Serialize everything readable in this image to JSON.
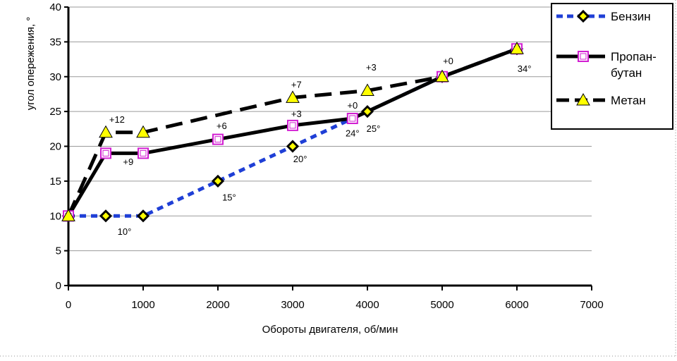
{
  "chart_data": {
    "type": "line",
    "title": "",
    "xlabel": "Обороты двигателя, об/мин",
    "ylabel": "угол опережения, °",
    "xlim": [
      0,
      7000
    ],
    "ylim": [
      0,
      40
    ],
    "x_ticks": [
      "0",
      "1000",
      "2000",
      "3000",
      "4000",
      "5000",
      "6000",
      "7000"
    ],
    "y_ticks": [
      "0",
      "5",
      "10",
      "15",
      "20",
      "25",
      "30",
      "35",
      "40"
    ],
    "grid": "horizontal",
    "legend_position": "top-right",
    "series": [
      {
        "name": "Бензин",
        "color": "#1f3fd6",
        "line_style": "dotted",
        "marker": "diamond",
        "x": [
          0,
          500,
          1000,
          2000,
          3000,
          4000,
          5000,
          6000
        ],
        "y": [
          10,
          10,
          10,
          15,
          20,
          25,
          30,
          34
        ]
      },
      {
        "name": "Пропан-бутан",
        "name_lines": [
          "Пропан-",
          "бутан"
        ],
        "color": "#000000",
        "line_style": "solid",
        "marker": "square",
        "x": [
          0,
          500,
          1000,
          2000,
          3000,
          3800,
          5000,
          6000
        ],
        "y": [
          10,
          19,
          19,
          21,
          23,
          24,
          30,
          34
        ]
      },
      {
        "name": "Метан",
        "color": "#000000",
        "line_style": "dashed",
        "marker": "triangle",
        "x": [
          0,
          500,
          1000,
          3000,
          4000,
          5000,
          6000
        ],
        "y": [
          10,
          22,
          22,
          27,
          28,
          30,
          34
        ]
      }
    ],
    "annotations": [
      {
        "text": "+12",
        "x": 650,
        "y": 23.4
      },
      {
        "text": "+9",
        "x": 800,
        "y": 17.3
      },
      {
        "text": "+6",
        "x": 2050,
        "y": 22.5
      },
      {
        "text": "+7",
        "x": 3050,
        "y": 28.4
      },
      {
        "text": "+3",
        "x": 3050,
        "y": 24.2
      },
      {
        "text": "+3",
        "x": 4050,
        "y": 30.9
      },
      {
        "text": "+0",
        "x": 5080,
        "y": 31.8
      },
      {
        "text": "+0",
        "x": 3800,
        "y": 25.4
      },
      {
        "text": "10°",
        "x": 750,
        "y": 7.3
      },
      {
        "text": "15°",
        "x": 2150,
        "y": 12.2
      },
      {
        "text": "20°",
        "x": 3100,
        "y": 17.7
      },
      {
        "text": "24°",
        "x": 3800,
        "y": 21.4
      },
      {
        "text": "25°",
        "x": 4080,
        "y": 22.1
      },
      {
        "text": "34°",
        "x": 6100,
        "y": 30.7
      }
    ],
    "colors": {
      "background": "#ffffff",
      "axis": "#000000",
      "grid": "#9a9a9a",
      "marker_fill": "#ffff00",
      "square_marker": "#d21fd2",
      "frame_dots": "#c8c8c8"
    }
  }
}
